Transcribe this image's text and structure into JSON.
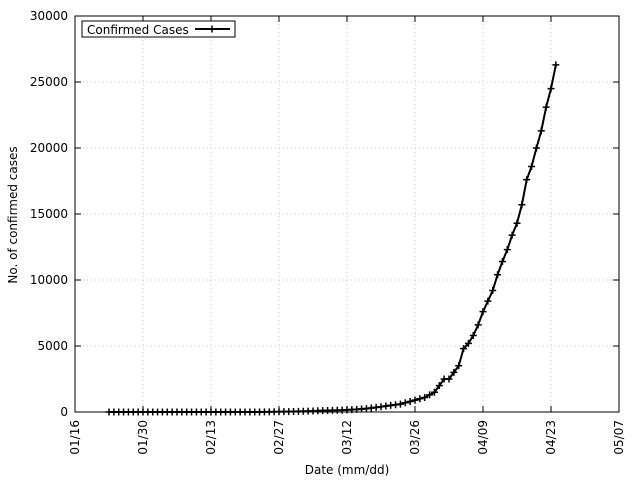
{
  "chart_data": {
    "type": "line",
    "title": "",
    "xlabel": "Date (mm/dd)",
    "ylabel": "No. of confirmed cases",
    "x_tick_labels": [
      "01/16",
      "01/30",
      "02/13",
      "02/27",
      "03/12",
      "03/26",
      "04/09",
      "04/23",
      "05/07"
    ],
    "y_tick_labels": [
      "0",
      "5000",
      "10000",
      "15000",
      "20000",
      "25000",
      "30000"
    ],
    "xlim": [
      "2020-01-16",
      "2020-05-07"
    ],
    "ylim": [
      0,
      30000
    ],
    "grid": true,
    "legend_position": "top-left",
    "series": [
      {
        "name": "Confirmed Cases",
        "color": "#000000",
        "marker": "plus",
        "x": [
          "2020-01-23",
          "2020-01-24",
          "2020-01-25",
          "2020-01-26",
          "2020-01-27",
          "2020-01-28",
          "2020-01-29",
          "2020-01-30",
          "2020-01-31",
          "2020-02-01",
          "2020-02-02",
          "2020-02-03",
          "2020-02-04",
          "2020-02-05",
          "2020-02-06",
          "2020-02-07",
          "2020-02-08",
          "2020-02-09",
          "2020-02-10",
          "2020-02-11",
          "2020-02-12",
          "2020-02-13",
          "2020-02-14",
          "2020-02-15",
          "2020-02-16",
          "2020-02-17",
          "2020-02-18",
          "2020-02-19",
          "2020-02-20",
          "2020-02-21",
          "2020-02-22",
          "2020-02-23",
          "2020-02-24",
          "2020-02-25",
          "2020-02-26",
          "2020-02-27",
          "2020-02-28",
          "2020-02-29",
          "2020-03-01",
          "2020-03-02",
          "2020-03-03",
          "2020-03-04",
          "2020-03-05",
          "2020-03-06",
          "2020-03-07",
          "2020-03-08",
          "2020-03-09",
          "2020-03-10",
          "2020-03-11",
          "2020-03-12",
          "2020-03-13",
          "2020-03-14",
          "2020-03-15",
          "2020-03-16",
          "2020-03-17",
          "2020-03-18",
          "2020-03-19",
          "2020-03-20",
          "2020-03-21",
          "2020-03-22",
          "2020-03-23",
          "2020-03-24",
          "2020-03-25",
          "2020-03-26",
          "2020-03-27",
          "2020-03-28",
          "2020-03-29",
          "2020-03-30",
          "2020-03-31",
          "2020-04-01",
          "2020-04-02",
          "2020-04-03",
          "2020-04-04",
          "2020-04-05",
          "2020-04-06",
          "2020-04-07",
          "2020-04-08",
          "2020-04-09",
          "2020-04-10",
          "2020-04-11",
          "2020-04-12",
          "2020-04-13",
          "2020-04-14",
          "2020-04-15",
          "2020-04-16",
          "2020-04-17",
          "2020-04-18",
          "2020-04-19",
          "2020-04-20",
          "2020-04-21",
          "2020-04-22",
          "2020-04-23",
          "2020-04-24"
        ],
        "y": [
          0,
          0,
          0,
          0,
          0,
          0,
          0,
          0,
          0,
          0,
          0,
          0,
          0,
          0,
          0,
          0,
          0,
          0,
          0,
          0,
          0,
          0,
          0,
          0,
          0,
          0,
          0,
          0,
          0,
          0,
          0,
          0,
          5,
          10,
          15,
          20,
          25,
          30,
          40,
          50,
          60,
          70,
          80,
          90,
          100,
          110,
          120,
          130,
          140,
          160,
          180,
          200,
          230,
          260,
          300,
          350,
          400,
          450,
          500,
          550,
          600,
          700,
          800,
          900,
          1000,
          1100,
          1300,
          1500,
          2000,
          2500,
          2500,
          3000,
          3500,
          4800,
          5200,
          5800,
          6600,
          7600,
          8400,
          9200,
          10400,
          11400,
          12300,
          13400,
          14300,
          15700,
          17600,
          18600,
          20000,
          21300,
          23100,
          24500,
          26300
        ]
      }
    ]
  }
}
